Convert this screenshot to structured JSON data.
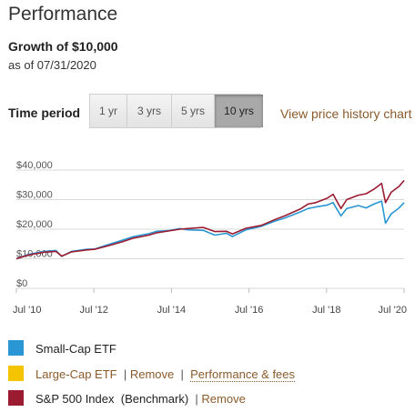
{
  "header": {
    "title": "Performance",
    "subtitle": "Growth of $10,000",
    "as_of": "as of 07/31/2020"
  },
  "time_period": {
    "label": "Time period",
    "options": [
      "1 yr",
      "3 yrs",
      "5 yrs",
      "10 yrs"
    ],
    "selected": "10 yrs"
  },
  "view_history_link": "View price history chart",
  "legend": {
    "small_cap": {
      "label": "Small-Cap ETF",
      "color": "#2a96d4"
    },
    "large_cap": {
      "label": "Large-Cap ETF",
      "color": "#f5c400",
      "remove": "Remove",
      "perf_fees": "Performance & fees"
    },
    "sp500": {
      "label": "S&P 500 Index",
      "benchmark": "(Benchmark)",
      "remove": "Remove",
      "color": "#9b1b30"
    },
    "separator": "|"
  },
  "chart_data": {
    "type": "line",
    "ylim": [
      0,
      40000
    ],
    "y_ticks": [
      "$0",
      "$10,000",
      "$20,000",
      "$30,000",
      "$40,000"
    ],
    "y_tick_values": [
      0,
      10000,
      20000,
      30000,
      40000
    ],
    "x_ticks": [
      "Jul '10",
      "Jul '12",
      "Jul '14",
      "Jul '16",
      "Jul '18",
      "Jul '20"
    ],
    "x_tick_years": [
      2010.58,
      2012.58,
      2014.58,
      2016.58,
      2018.58,
      2020.58
    ],
    "xlim": [
      2010.58,
      2020.58
    ],
    "series": [
      {
        "key": "small_cap",
        "color": "#2a96d4",
        "x": [
          2010.58,
          2010.9,
          2011.3,
          2011.6,
          2011.75,
          2012.0,
          2012.4,
          2012.6,
          2013.0,
          2013.3,
          2013.6,
          2014.0,
          2014.2,
          2014.5,
          2014.8,
          2015.0,
          2015.4,
          2015.7,
          2016.0,
          2016.15,
          2016.5,
          2016.9,
          2017.2,
          2017.5,
          2017.9,
          2018.1,
          2018.3,
          2018.6,
          2018.75,
          2018.95,
          2019.1,
          2019.4,
          2019.6,
          2019.8,
          2020.0,
          2020.1,
          2020.25,
          2020.45,
          2020.58
        ],
        "y": [
          10000,
          11500,
          12500,
          12800,
          10800,
          12500,
          13200,
          13300,
          15000,
          16200,
          17500,
          18500,
          19300,
          19500,
          20200,
          19800,
          19600,
          18000,
          18600,
          17500,
          19800,
          21000,
          22500,
          23800,
          25800,
          27000,
          27500,
          28200,
          29000,
          24500,
          27000,
          28000,
          27200,
          28500,
          29500,
          22000,
          25200,
          27200,
          29000
        ]
      },
      {
        "key": "sp500",
        "color": "#9b1b30",
        "x": [
          2010.58,
          2010.9,
          2011.3,
          2011.6,
          2011.75,
          2012.0,
          2012.4,
          2012.6,
          2013.0,
          2013.3,
          2013.6,
          2014.0,
          2014.2,
          2014.5,
          2014.8,
          2015.0,
          2015.4,
          2015.7,
          2016.0,
          2016.15,
          2016.5,
          2016.9,
          2017.2,
          2017.5,
          2017.9,
          2018.1,
          2018.3,
          2018.6,
          2018.75,
          2018.95,
          2019.1,
          2019.4,
          2019.6,
          2019.8,
          2020.0,
          2020.1,
          2020.25,
          2020.45,
          2020.58
        ],
        "y": [
          10000,
          11300,
          12200,
          12500,
          10900,
          12300,
          13000,
          13200,
          14600,
          15700,
          17000,
          18000,
          18800,
          19400,
          20000,
          20200,
          20600,
          19200,
          19300,
          18400,
          20300,
          21300,
          23000,
          24500,
          26800,
          28500,
          29000,
          30500,
          31800,
          27000,
          30000,
          31500,
          32000,
          33500,
          35500,
          29000,
          32500,
          34500,
          36500
        ]
      }
    ]
  }
}
